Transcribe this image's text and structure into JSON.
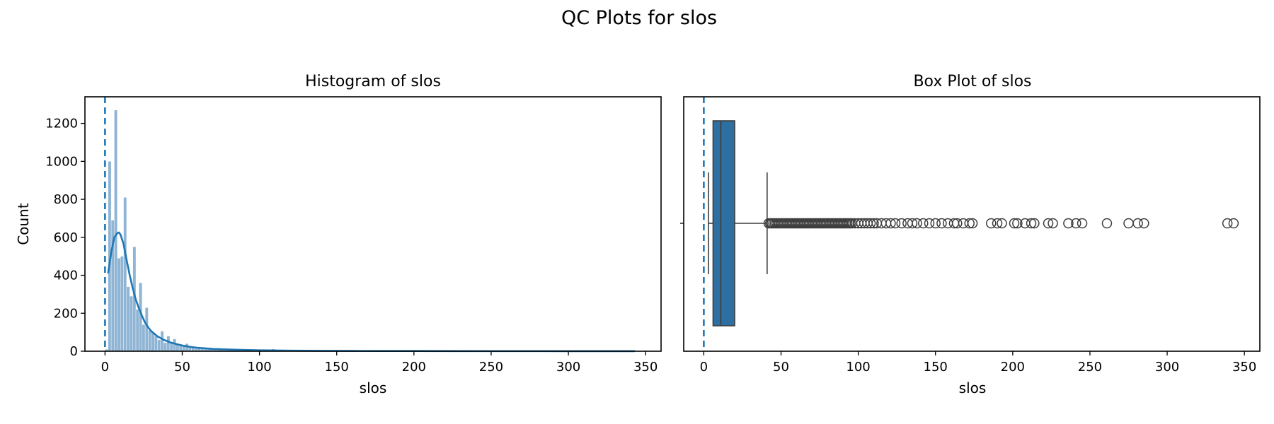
{
  "title": "QC Plots for slos",
  "colors": {
    "primary": "#1f77b4",
    "box_fill": "#2e6fa1",
    "bar_fill": "#7ba7cc",
    "outlier_edge": "#3d3d3d"
  },
  "chart_data": [
    {
      "type": "bar",
      "subtype": "histogram",
      "title": "Histogram of slos",
      "xlabel": "slos",
      "ylabel": "Count",
      "xlim": [
        -13,
        360
      ],
      "ylim": [
        0,
        1340
      ],
      "xticks": [
        0,
        50,
        100,
        150,
        200,
        250,
        300,
        350
      ],
      "yticks": [
        0,
        200,
        400,
        600,
        800,
        1000,
        1200
      ],
      "grid": false,
      "bin_width": 2,
      "bins": [
        [
          0,
          2,
          10
        ],
        [
          2,
          4,
          1000
        ],
        [
          4,
          6,
          690
        ],
        [
          6,
          8,
          1270
        ],
        [
          8,
          10,
          490
        ],
        [
          10,
          12,
          500
        ],
        [
          12,
          14,
          810
        ],
        [
          14,
          16,
          340
        ],
        [
          16,
          18,
          290
        ],
        [
          18,
          20,
          550
        ],
        [
          20,
          22,
          220
        ],
        [
          22,
          24,
          360
        ],
        [
          24,
          26,
          140
        ],
        [
          26,
          28,
          230
        ],
        [
          28,
          30,
          110
        ],
        [
          30,
          32,
          100
        ],
        [
          32,
          34,
          80
        ],
        [
          34,
          36,
          60
        ],
        [
          36,
          38,
          105
        ],
        [
          38,
          40,
          45
        ],
        [
          40,
          42,
          80
        ],
        [
          42,
          44,
          45
        ],
        [
          44,
          46,
          65
        ],
        [
          46,
          48,
          40
        ],
        [
          48,
          50,
          35
        ],
        [
          50,
          52,
          25
        ],
        [
          52,
          54,
          40
        ],
        [
          54,
          56,
          25
        ],
        [
          56,
          58,
          20
        ],
        [
          58,
          60,
          15
        ],
        [
          60,
          62,
          18
        ],
        [
          62,
          64,
          12
        ],
        [
          64,
          66,
          14
        ],
        [
          66,
          68,
          10
        ],
        [
          68,
          70,
          10
        ],
        [
          70,
          72,
          9
        ],
        [
          72,
          74,
          8
        ],
        [
          74,
          76,
          8
        ],
        [
          76,
          78,
          6
        ],
        [
          78,
          80,
          6
        ],
        [
          80,
          82,
          6
        ],
        [
          82,
          84,
          5
        ],
        [
          84,
          86,
          5
        ],
        [
          86,
          88,
          5
        ],
        [
          88,
          90,
          5
        ],
        [
          90,
          92,
          4
        ],
        [
          92,
          94,
          4
        ],
        [
          94,
          96,
          4
        ],
        [
          96,
          98,
          3
        ],
        [
          98,
          100,
          3
        ],
        [
          100,
          102,
          3
        ],
        [
          102,
          104,
          3
        ],
        [
          104,
          106,
          2
        ],
        [
          106,
          108,
          2
        ],
        [
          108,
          110,
          12
        ],
        [
          110,
          112,
          3
        ],
        [
          112,
          114,
          2
        ],
        [
          114,
          116,
          2
        ],
        [
          116,
          118,
          2
        ],
        [
          118,
          120,
          2
        ],
        [
          120,
          125,
          2
        ],
        [
          125,
          130,
          2
        ],
        [
          130,
          135,
          1
        ],
        [
          135,
          140,
          1
        ],
        [
          140,
          145,
          1
        ],
        [
          145,
          150,
          1
        ],
        [
          150,
          155,
          1
        ],
        [
          155,
          160,
          1
        ],
        [
          160,
          165,
          1
        ],
        [
          165,
          170,
          1
        ],
        [
          170,
          175,
          1
        ],
        [
          185,
          190,
          1
        ],
        [
          190,
          195,
          1
        ],
        [
          200,
          205,
          1
        ],
        [
          205,
          210,
          1
        ],
        [
          210,
          215,
          1
        ],
        [
          220,
          225,
          1
        ],
        [
          225,
          230,
          1
        ],
        [
          235,
          240,
          1
        ],
        [
          240,
          245,
          1
        ],
        [
          245,
          250,
          1
        ],
        [
          260,
          265,
          1
        ],
        [
          275,
          280,
          1
        ],
        [
          280,
          285,
          1
        ],
        [
          285,
          290,
          1
        ],
        [
          338,
          340,
          1
        ],
        [
          342,
          344,
          1
        ]
      ],
      "kde": {
        "x": [
          2,
          4,
          6,
          8,
          9,
          10,
          12,
          14,
          16,
          18,
          20,
          22,
          24,
          26,
          28,
          30,
          34,
          38,
          42,
          46,
          50,
          55,
          60,
          65,
          70,
          80,
          90,
          100,
          110,
          120,
          140,
          160,
          180,
          200,
          250,
          300,
          343
        ],
        "y": [
          410,
          520,
          600,
          622,
          625,
          615,
          565,
          480,
          400,
          330,
          270,
          225,
          185,
          150,
          125,
          105,
          78,
          60,
          47,
          38,
          30,
          23,
          18,
          15,
          12,
          9,
          7,
          5,
          4,
          3,
          2,
          1.5,
          1,
          1,
          0.5,
          0.4,
          0.3
        ]
      },
      "reference_line": {
        "x": 0,
        "style": "dashed"
      }
    },
    {
      "type": "box",
      "title": "Box Plot of slos",
      "xlabel": "slos",
      "xlim": [
        -13,
        360
      ],
      "xticks": [
        0,
        50,
        100,
        150,
        200,
        250,
        300,
        350
      ],
      "grid": false,
      "whisker_low": 3,
      "q1": 6,
      "median": 11,
      "q3": 20,
      "whisker_high": 41,
      "outliers": [
        42,
        43,
        44,
        45,
        46,
        47,
        48,
        49,
        50,
        51,
        52,
        53,
        54,
        55,
        56,
        57,
        58,
        59,
        60,
        61,
        62,
        63,
        64,
        65,
        66,
        67,
        68,
        69,
        70,
        71,
        72,
        73,
        74,
        75,
        76,
        77,
        78,
        79,
        80,
        81,
        82,
        83,
        84,
        85,
        86,
        87,
        88,
        89,
        90,
        91,
        92,
        93,
        94,
        95,
        96,
        98,
        100,
        102,
        104,
        106,
        108,
        110,
        112,
        115,
        118,
        121,
        124,
        128,
        132,
        135,
        138,
        142,
        146,
        150,
        154,
        158,
        162,
        164,
        168,
        172,
        174,
        186,
        190,
        193,
        201,
        203,
        208,
        212,
        214,
        223,
        226,
        236,
        241,
        245,
        261,
        275,
        281,
        285,
        339,
        343
      ],
      "reference_line": {
        "x": 0,
        "style": "dashed"
      }
    }
  ]
}
